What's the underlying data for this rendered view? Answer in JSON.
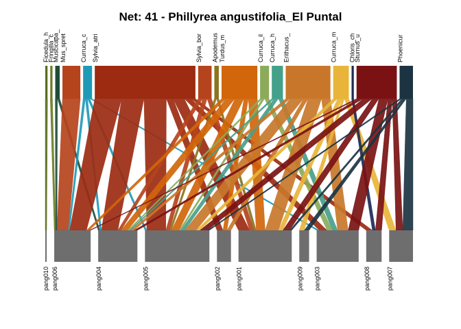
{
  "chart_data": {
    "type": "bipartite",
    "title": "Net: 41 - Phillyrea angustifolia_El Puntal",
    "higher_level": [
      {
        "label": "Ficedula_h",
        "color": "#5a6e1a",
        "size": 1
      },
      {
        "label": "Fringilla_c",
        "color": "#6a7d24",
        "size": 1
      },
      {
        "label": "Muscicapa_",
        "color": "#1e4d3a",
        "size": 2
      },
      {
        "label": "Mus_spret",
        "color": "#b5441c",
        "size": 8
      },
      {
        "label": "Curruca_c",
        "color": "#1e9ab8",
        "size": 4
      },
      {
        "label": "Sylvia_atri",
        "color": "#9c2b12",
        "size": 45
      },
      {
        "label": "Sylvia_bor",
        "color": "#b5441c",
        "size": 6
      },
      {
        "label": "Apodemus",
        "color": "#8a7420",
        "size": 2
      },
      {
        "label": "Turdus_m",
        "color": "#d1660a",
        "size": 16
      },
      {
        "label": "Curruca_il",
        "color": "#8bab5a",
        "size": 4
      },
      {
        "label": "Curruca_h",
        "color": "#45a08a",
        "size": 5
      },
      {
        "label": "Erithacus_",
        "color": "#c8772a",
        "size": 20
      },
      {
        "label": "Curruca_m",
        "color": "#e8b53a",
        "size": 7
      },
      {
        "label": "Chloris_ch",
        "color": "#1e2a55",
        "size": 1
      },
      {
        "label": "Sturnus_u",
        "color": "#7a1214",
        "size": 18
      },
      {
        "label": "Phoenicur",
        "color": "#1c3442",
        "size": 6
      }
    ],
    "lower_level": [
      {
        "label": "pang010",
        "size": 1
      },
      {
        "label": "pang006",
        "size": 26
      },
      {
        "label": "pang004",
        "size": 28
      },
      {
        "label": "pang005",
        "size": 46
      },
      {
        "label": "pang002",
        "size": 10
      },
      {
        "label": "pang001",
        "size": 38
      },
      {
        "label": "pang009",
        "size": 7
      },
      {
        "label": "pang003",
        "size": 30
      },
      {
        "label": "pang008",
        "size": 11
      },
      {
        "label": "pang007",
        "size": 17
      }
    ],
    "links": [
      [
        "Ficedula_h",
        "pang010",
        1
      ],
      [
        "Fringilla_c",
        "pang006",
        1
      ],
      [
        "Muscicapa_",
        "pang006",
        1
      ],
      [
        "Muscicapa_",
        "pang004",
        1
      ],
      [
        "Mus_spret",
        "pang006",
        8
      ],
      [
        "Curruca_c",
        "pang006",
        1
      ],
      [
        "Curruca_c",
        "pang004",
        1
      ],
      [
        "Curruca_c",
        "pang005",
        1
      ],
      [
        "Curruca_c",
        "pang003",
        1
      ],
      [
        "Sylvia_atri",
        "pang006",
        12
      ],
      [
        "Sylvia_atri",
        "pang004",
        10
      ],
      [
        "Sylvia_atri",
        "pang005",
        10
      ],
      [
        "Sylvia_atri",
        "pang002",
        3
      ],
      [
        "Sylvia_atri",
        "pang001",
        5
      ],
      [
        "Sylvia_atri",
        "pang003",
        3
      ],
      [
        "Sylvia_atri",
        "pang008",
        2
      ],
      [
        "Sylvia_bor",
        "pang004",
        2
      ],
      [
        "Sylvia_bor",
        "pang005",
        2
      ],
      [
        "Sylvia_bor",
        "pang001",
        2
      ],
      [
        "Apodemus",
        "pang005",
        1
      ],
      [
        "Apodemus",
        "pang001",
        1
      ],
      [
        "Turdus_m",
        "pang006",
        2
      ],
      [
        "Turdus_m",
        "pang004",
        4
      ],
      [
        "Turdus_m",
        "pang005",
        4
      ],
      [
        "Turdus_m",
        "pang002",
        2
      ],
      [
        "Turdus_m",
        "pang001",
        4
      ],
      [
        "Curruca_il",
        "pang004",
        1
      ],
      [
        "Curruca_il",
        "pang005",
        1
      ],
      [
        "Curruca_il",
        "pang003",
        2
      ],
      [
        "Curruca_h",
        "pang004",
        1
      ],
      [
        "Curruca_h",
        "pang005",
        2
      ],
      [
        "Curruca_h",
        "pang003",
        2
      ],
      [
        "Erithacus_",
        "pang004",
        2
      ],
      [
        "Erithacus_",
        "pang005",
        6
      ],
      [
        "Erithacus_",
        "pang002",
        2
      ],
      [
        "Erithacus_",
        "pang001",
        6
      ],
      [
        "Erithacus_",
        "pang003",
        4
      ],
      [
        "Curruca_m",
        "pang005",
        2
      ],
      [
        "Curruca_m",
        "pang001",
        2
      ],
      [
        "Curruca_m",
        "pang009",
        1
      ],
      [
        "Curruca_m",
        "pang007",
        2
      ],
      [
        "Chloris_ch",
        "pang008",
        1
      ],
      [
        "Sturnus_u",
        "pang006",
        1
      ],
      [
        "Sturnus_u",
        "pang004",
        2
      ],
      [
        "Sturnus_u",
        "pang005",
        4
      ],
      [
        "Sturnus_u",
        "pang001",
        3
      ],
      [
        "Sturnus_u",
        "pang003",
        4
      ],
      [
        "Sturnus_u",
        "pang008",
        2
      ],
      [
        "Sturnus_u",
        "pang007",
        2
      ],
      [
        "Phoenicur",
        "pang005",
        1
      ],
      [
        "Phoenicur",
        "pang001",
        1
      ],
      [
        "Phoenicur",
        "pang009",
        1
      ],
      [
        "Phoenicur",
        "pang007",
        3
      ]
    ]
  }
}
